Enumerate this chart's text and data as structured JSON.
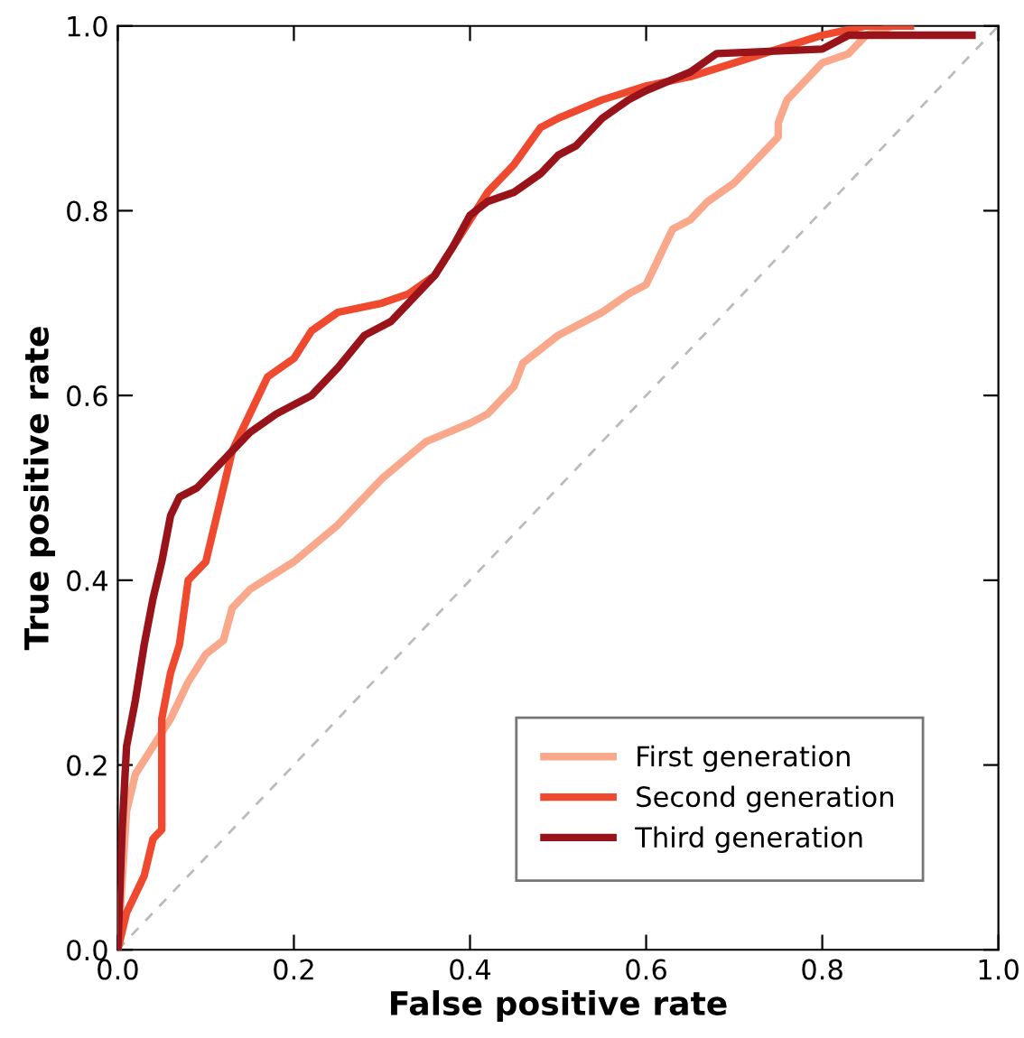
{
  "chart_data": {
    "type": "line",
    "xlabel": "False positive rate",
    "ylabel": "True positive rate",
    "xlim": [
      0,
      1
    ],
    "ylim": [
      0,
      1
    ],
    "xticks": [
      {
        "value": 0,
        "label": "0.0"
      },
      0.2,
      0.4,
      0.6,
      0.8,
      {
        "value": 1,
        "label": "1.0"
      }
    ],
    "yticks": [
      {
        "value": 0,
        "label": "0.0"
      },
      0.2,
      0.4,
      0.6,
      0.8,
      {
        "value": 1,
        "label": "1.0"
      }
    ],
    "grid": false,
    "legend": "bottom right",
    "marker": "none",
    "series": [
      {
        "name": "First generation",
        "color": "#f9a88c",
        "line_style": "solid",
        "x": [
          0,
          0.01,
          0.02,
          0.04,
          0.06,
          0.08,
          0.1,
          0.12,
          0.13,
          0.15,
          0.2,
          0.25,
          0.3,
          0.35,
          0.4,
          0.42,
          0.45,
          0.46,
          0.5,
          0.55,
          0.58,
          0.6,
          0.61,
          0.62,
          0.63,
          0.65,
          0.67,
          0.7,
          0.72,
          0.75,
          0.75,
          0.76,
          0.78,
          0.8,
          0.83,
          0.85,
          0.88,
          0.9
        ],
        "values": [
          0,
          0.15,
          0.19,
          0.22,
          0.25,
          0.29,
          0.32,
          0.335,
          0.37,
          0.39,
          0.42,
          0.46,
          0.51,
          0.55,
          0.57,
          0.58,
          0.61,
          0.635,
          0.665,
          0.69,
          0.71,
          0.72,
          0.74,
          0.76,
          0.78,
          0.79,
          0.81,
          0.83,
          0.85,
          0.88,
          0.895,
          0.92,
          0.94,
          0.96,
          0.97,
          0.99,
          1.0,
          1.0
        ]
      },
      {
        "name": "Second generation",
        "color": "#ef4a30",
        "line_style": "solid",
        "x": [
          0,
          0.01,
          0.03,
          0.04,
          0.05,
          0.05,
          0.06,
          0.07,
          0.08,
          0.1,
          0.12,
          0.13,
          0.15,
          0.17,
          0.2,
          0.22,
          0.25,
          0.3,
          0.33,
          0.36,
          0.38,
          0.4,
          0.42,
          0.45,
          0.48,
          0.5,
          0.55,
          0.6,
          0.65,
          0.7,
          0.75,
          0.8,
          0.85,
          0.9
        ],
        "values": [
          0,
          0.04,
          0.08,
          0.12,
          0.13,
          0.25,
          0.3,
          0.33,
          0.4,
          0.42,
          0.5,
          0.54,
          0.58,
          0.62,
          0.64,
          0.67,
          0.69,
          0.7,
          0.71,
          0.73,
          0.76,
          0.79,
          0.82,
          0.85,
          0.89,
          0.9,
          0.92,
          0.935,
          0.945,
          0.96,
          0.975,
          0.99,
          1.0,
          1.0
        ]
      },
      {
        "name": "Third generation",
        "color": "#99141a",
        "line_style": "solid",
        "x": [
          0,
          0.005,
          0.01,
          0.02,
          0.03,
          0.04,
          0.05,
          0.06,
          0.07,
          0.09,
          0.1,
          0.12,
          0.15,
          0.18,
          0.2,
          0.22,
          0.25,
          0.28,
          0.31,
          0.34,
          0.36,
          0.38,
          0.4,
          0.42,
          0.45,
          0.48,
          0.5,
          0.52,
          0.55,
          0.58,
          0.6,
          0.65,
          0.68,
          0.8,
          0.83,
          0.97
        ],
        "values": [
          0,
          0.13,
          0.22,
          0.27,
          0.33,
          0.38,
          0.42,
          0.47,
          0.49,
          0.5,
          0.51,
          0.53,
          0.56,
          0.58,
          0.59,
          0.6,
          0.63,
          0.665,
          0.68,
          0.71,
          0.73,
          0.76,
          0.795,
          0.81,
          0.82,
          0.84,
          0.86,
          0.87,
          0.9,
          0.92,
          0.93,
          0.95,
          0.97,
          0.975,
          0.99,
          0.99
        ]
      },
      {
        "color": "#bbbbbb",
        "line_style": "dashed",
        "x": [
          0,
          1
        ],
        "values": [
          0,
          1
        ]
      }
    ]
  }
}
